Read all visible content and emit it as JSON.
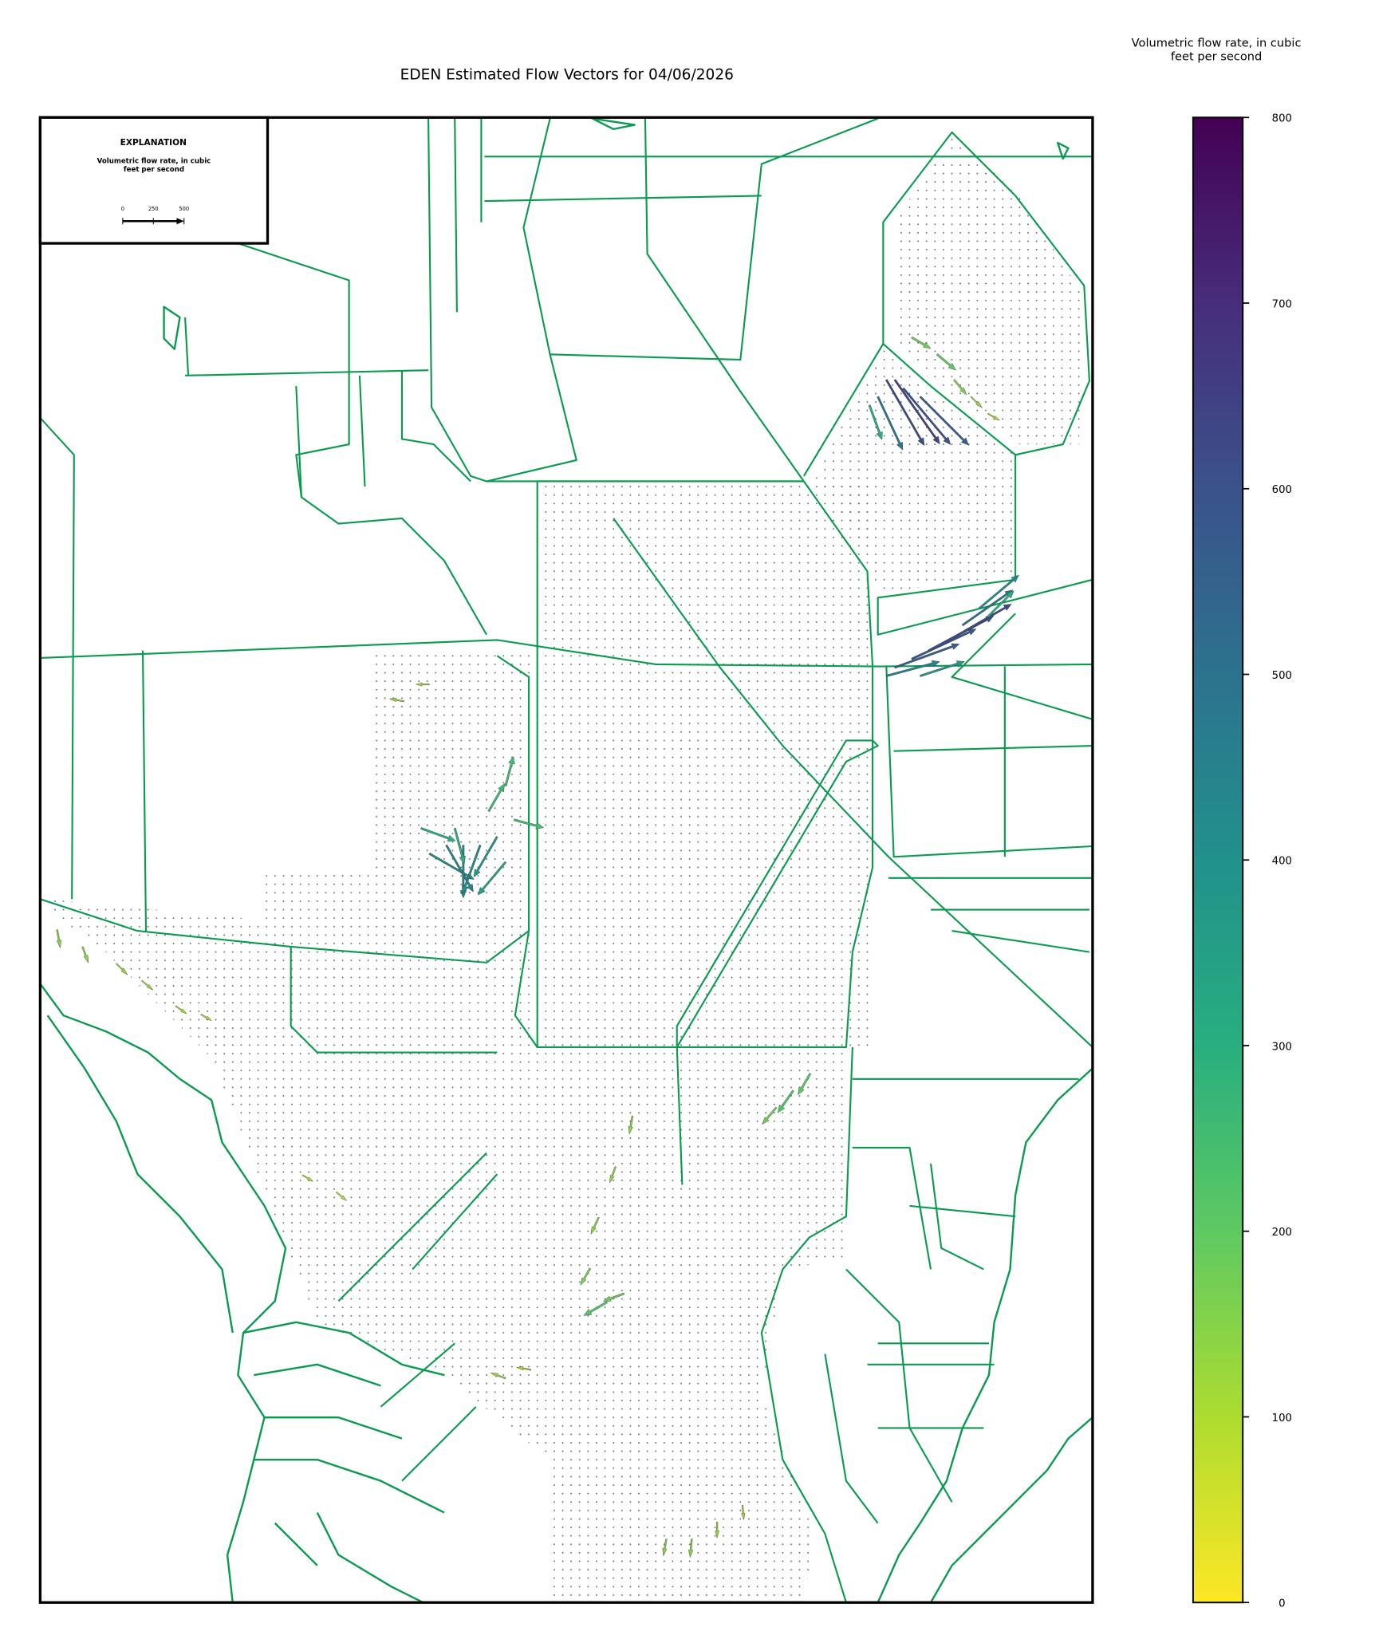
{
  "chart_data": {
    "type": "quiver-map",
    "title": "EDEN Estimated Flow Vectors for 04/06/2026",
    "colorbar_label": "Volumetric flow rate, in cubic feet per second",
    "colorbar_lim": [
      0,
      800
    ],
    "colorbar_ticks": [
      0,
      100,
      200,
      300,
      400,
      500,
      600,
      700,
      800
    ],
    "colormap": [
      "#fde725",
      "#addc30",
      "#5ec962",
      "#28ae80",
      "#21918c",
      "#2c728e",
      "#3b528b",
      "#472d7b",
      "#440154"
    ],
    "legend": {
      "title": "EXPLANATION",
      "label": "Volumetric flow rate, in cubic feet per second",
      "scale_ticks": [
        0,
        250,
        500
      ]
    },
    "vectors": {
      "col": [
        100,
        101,
        102,
        99,
        104,
        98,
        103,
        106,
        108,
        110,
        112,
        101,
        103,
        105,
        107,
        109,
        111,
        100,
        104,
        112,
        46,
        48,
        50,
        52,
        54,
        45,
        55,
        49,
        53,
        55,
        56,
        2,
        5,
        9,
        12,
        16,
        19,
        70,
        68,
        66,
        65,
        67,
        69,
        91,
        89,
        87,
        74,
        77,
        80,
        83,
        55,
        58,
        43,
        46,
        31,
        35
      ],
      "row": [
        31,
        31,
        32,
        33,
        33,
        34,
        26,
        28,
        31,
        33,
        35,
        65,
        64,
        63,
        62,
        60,
        58,
        66,
        66,
        59,
        87,
        86,
        86,
        86,
        85,
        84,
        88,
        84,
        82,
        79,
        83,
        96,
        98,
        100,
        102,
        105,
        106,
        118,
        124,
        130,
        136,
        140,
        139,
        113,
        115,
        117,
        168,
        168,
        166,
        164,
        149,
        148,
        69,
        67,
        125,
        127
      ],
      "magnitude": [
        620,
        640,
        600,
        480,
        560,
        300,
        180,
        200,
        160,
        130,
        110,
        560,
        580,
        600,
        620,
        500,
        420,
        450,
        380,
        300,
        420,
        440,
        430,
        420,
        380,
        300,
        350,
        300,
        260,
        250,
        250,
        150,
        140,
        130,
        120,
        110,
        100,
        150,
        140,
        150,
        160,
        220,
        180,
        200,
        220,
        180,
        140,
        150,
        130,
        120,
        130,
        120,
        120,
        110,
        100,
        110
      ],
      "direction": [
        -60,
        -55,
        -50,
        -65,
        -45,
        -70,
        -30,
        -40,
        -50,
        -45,
        -30,
        20,
        25,
        28,
        30,
        35,
        40,
        15,
        18,
        45,
        -30,
        -60,
        -90,
        -110,
        -120,
        -20,
        -130,
        -75,
        60,
        75,
        -15,
        -80,
        -70,
        -45,
        -40,
        -35,
        -30,
        -100,
        -110,
        -115,
        -120,
        -150,
        -160,
        -120,
        -125,
        -130,
        -100,
        -95,
        -90,
        -85,
        160,
        170,
        170,
        180,
        -30,
        -40
      ]
    }
  }
}
